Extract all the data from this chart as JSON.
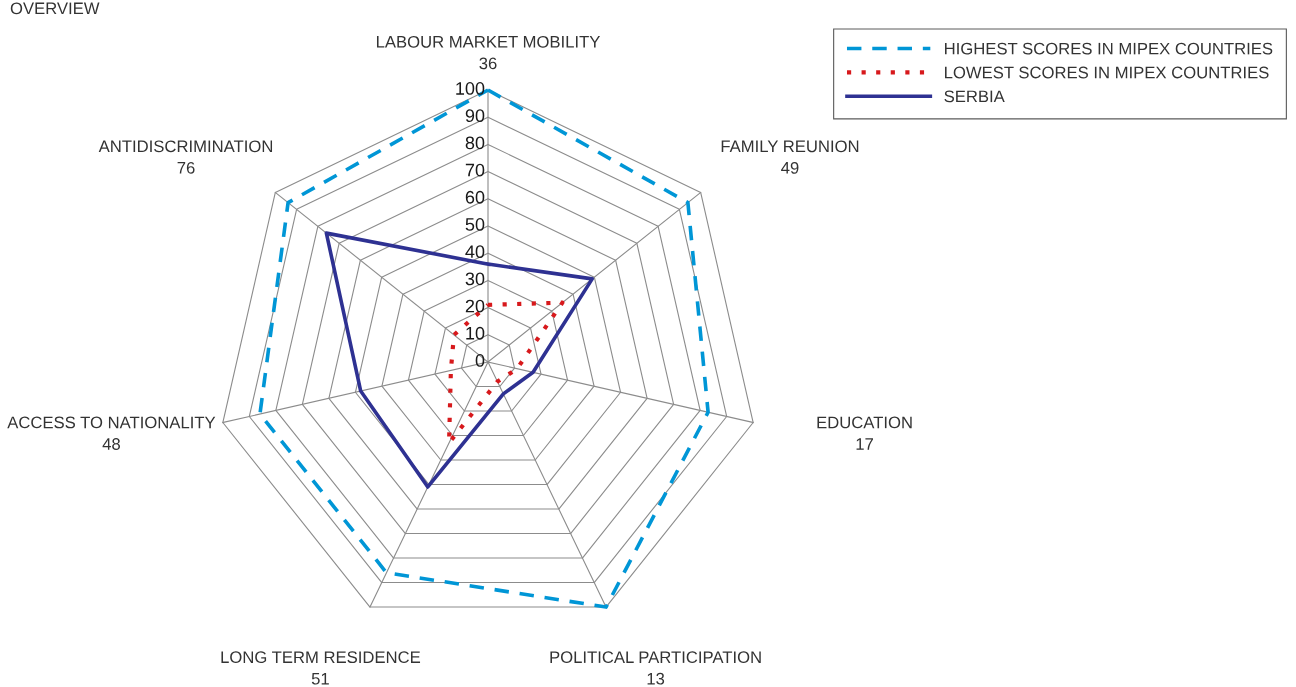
{
  "chart_data": {
    "type": "radar",
    "title": "OVERVIEW",
    "categories": [
      "LABOUR MARKET MOBILITY\n36",
      "FAMILY REUNION\n49",
      "EDUCATION\n17",
      "POLITICAL PARTICIPATION\n13",
      "LONG TERM RESIDENCE\n51",
      "ACCESS TO NATIONALITY\n48",
      "ANTIDISCRIMINATION\n76"
    ],
    "ylim": [
      0,
      100
    ],
    "yticks": [
      0,
      10,
      20,
      30,
      40,
      50,
      60,
      70,
      80,
      90,
      100
    ],
    "grid": true,
    "legend": "top right",
    "marker": "none",
    "series": [
      {
        "name": "HIGHEST SCORES IN MIPEX COUNTRIES",
        "color": "#0096d6",
        "line_style": "dashed",
        "values": [
          100,
          94,
          83,
          100,
          86,
          86,
          94
        ]
      },
      {
        "name": "LOWEST SCORES IN MIPEX COUNTRIES",
        "color": "#d7191c",
        "line_style": "dotted",
        "values": [
          21,
          35,
          11,
          8,
          33,
          14,
          16
        ]
      },
      {
        "name": "SERBIA",
        "color": "#2e3192",
        "line_style": "solid",
        "values": [
          36,
          49,
          17,
          13,
          51,
          48,
          76
        ]
      }
    ]
  }
}
